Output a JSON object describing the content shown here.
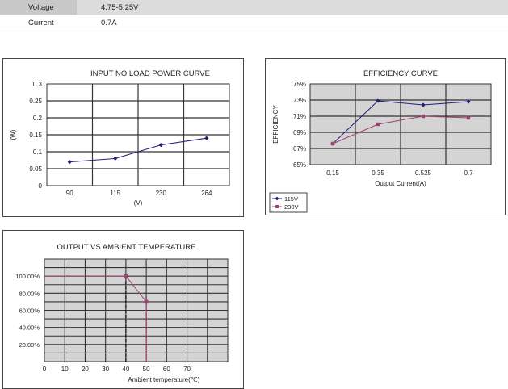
{
  "spec_table": {
    "rows": [
      {
        "label": "Voltage",
        "value": "4.75-5.25V"
      },
      {
        "label": "Current",
        "value": "0.7A"
      }
    ]
  },
  "chart_data": [
    {
      "type": "line",
      "title": "INPUT  NO LOAD POWER CURVE",
      "xlabel": "(V)",
      "ylabel": "(W)",
      "categories": [
        "90",
        "115",
        "230",
        "264"
      ],
      "series": [
        {
          "values": [
            0.07,
            0.08,
            0.12,
            0.14
          ]
        }
      ],
      "ylim": [
        0,
        0.3
      ],
      "yticks": [
        "0",
        "0.05",
        "0.1",
        "0.15",
        "0.2",
        "0.25",
        "0.3"
      ],
      "grid": true,
      "colors": {
        "line": "#1f1f7a",
        "plot_bg": "#ffffff",
        "grid": "#333333"
      }
    },
    {
      "type": "line",
      "title": "EFFICIENCY  CURVE",
      "xlabel": "Output Current(A)",
      "ylabel": "EFFICIENCY",
      "categories": [
        "0.15",
        "0.35",
        "0.525",
        "0.7"
      ],
      "series": [
        {
          "name": "115V",
          "values": [
            67.6,
            72.9,
            72.4,
            72.8
          ],
          "color": "#1f1f7a",
          "marker": "diamond"
        },
        {
          "name": "230V",
          "values": [
            67.6,
            70.0,
            71.0,
            70.8
          ],
          "color": "#a04070",
          "marker": "square"
        }
      ],
      "ylim": [
        65,
        75
      ],
      "yticks": [
        "65%",
        "67%",
        "69%",
        "71%",
        "73%",
        "75%"
      ],
      "grid": true,
      "legend": "bottom-left",
      "colors": {
        "plot_bg": "#d4d4d4",
        "grid": "#333333"
      }
    },
    {
      "type": "line",
      "title": "OUTPUT VS AMBIENT TEMPERATURE",
      "xlabel": "Ambient temperature(℃)",
      "ylabel": "",
      "x": [
        0,
        40,
        50
      ],
      "series": [
        {
          "values": [
            100,
            100,
            70
          ]
        }
      ],
      "xticks": [
        "0",
        "10",
        "20",
        "30",
        "40",
        "50",
        "60",
        "70"
      ],
      "yticks": [
        "20.00%",
        "40.00%",
        "60.00%",
        "80.00%",
        "100.00%"
      ],
      "xlim": [
        0,
        90
      ],
      "ylim": [
        0,
        120
      ],
      "grid": true,
      "colors": {
        "line": "#a04070",
        "marker": "#a04070",
        "guide": "#a04070",
        "plot_bg": "#d4d4d4",
        "grid": "#333333"
      }
    }
  ]
}
